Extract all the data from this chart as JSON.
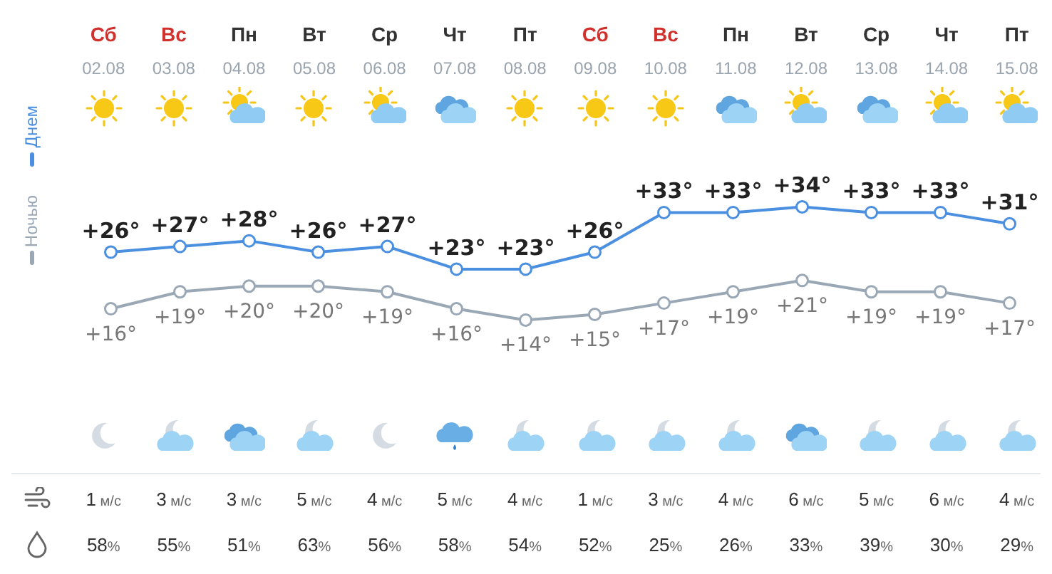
{
  "chart_data": {
    "type": "line",
    "categories": [
      "Сб",
      "Вс",
      "Пн",
      "Вт",
      "Ср",
      "Чт",
      "Пт",
      "Сб",
      "Вс",
      "Пн",
      "Вт",
      "Ср",
      "Чт",
      "Пт"
    ],
    "series": [
      {
        "name": "Днем",
        "color": "#4a8fe0",
        "values": [
          26,
          27,
          28,
          26,
          27,
          23,
          23,
          26,
          33,
          33,
          34,
          33,
          33,
          31
        ],
        "value_labels": [
          "+26°",
          "+27°",
          "+28°",
          "+26°",
          "+27°",
          "+23°",
          "+23°",
          "+26°",
          "+33°",
          "+33°",
          "+34°",
          "+33°",
          "+33°",
          "+31°"
        ]
      },
      {
        "name": "Ночью",
        "color": "#9aa8b6",
        "values": [
          16,
          19,
          20,
          20,
          19,
          16,
          14,
          15,
          17,
          19,
          21,
          19,
          19,
          17
        ],
        "value_labels": [
          "+16°",
          "+19°",
          "+20°",
          "+20°",
          "+19°",
          "+16°",
          "+14°",
          "+15°",
          "+17°",
          "+19°",
          "+21°",
          "+19°",
          "+19°",
          "+17°"
        ]
      }
    ],
    "tick_labels": false,
    "grid": false,
    "legend": "left",
    "marker": "circle",
    "annotations": [
      "02.08",
      "03.08",
      "04.08",
      "05.08",
      "06.08",
      "07.08",
      "08.08",
      "09.08",
      "10.08",
      "11.08",
      "12.08",
      "13.08",
      "14.08",
      "15.08",
      "1 м/с",
      "3 м/с",
      "3 м/с",
      "5 м/с",
      "4 м/с",
      "5 м/с",
      "4 м/с",
      "1 м/с",
      "3 м/с",
      "4 м/с",
      "6 м/с",
      "5 м/с",
      "6 м/с",
      "4 м/с",
      "58%",
      "55%",
      "51%",
      "63%",
      "56%",
      "58%",
      "54%",
      "52%",
      "25%",
      "26%",
      "33%",
      "39%",
      "30%",
      "29%"
    ]
  }
}
